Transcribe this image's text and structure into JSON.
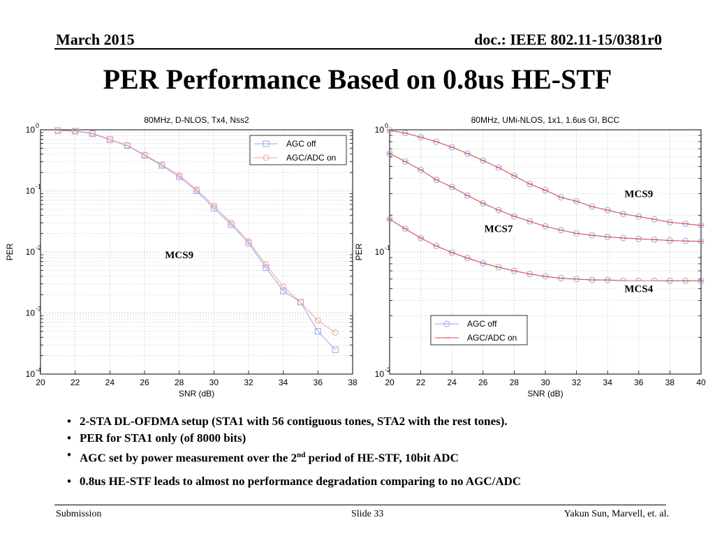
{
  "header": {
    "date": "March 2015",
    "doc": "doc.: IEEE 802.11-15/0381r0"
  },
  "title": "PER Performance Based on 0.8us HE-STF",
  "chart_data": [
    {
      "type": "line",
      "title": "80MHz, D-NLOS, Tx4, Nss2",
      "xlabel": "SNR (dB)",
      "ylabel": "PER",
      "xlim": [
        20,
        38
      ],
      "xticks": [
        20,
        22,
        24,
        26,
        28,
        30,
        32,
        34,
        36,
        38
      ],
      "yscale": "log",
      "ylim": [
        0.0001,
        1
      ],
      "yticks": [
        "10^0",
        "10^-1",
        "10^-2",
        "10^-3",
        "10^-4"
      ],
      "grid": true,
      "legend_position": "top-right",
      "annotations": [
        {
          "text": "MCS9",
          "x": 28,
          "y": 0.009
        }
      ],
      "series": [
        {
          "name": "AGC off",
          "marker": "square",
          "color": "#9aa0ee",
          "x": [
            21,
            22,
            23,
            24,
            25,
            26,
            27,
            28,
            29,
            30,
            31,
            32,
            33,
            34,
            35,
            36,
            37
          ],
          "y": [
            0.97,
            0.95,
            0.86,
            0.69,
            0.55,
            0.38,
            0.26,
            0.17,
            0.1,
            0.052,
            0.028,
            0.014,
            0.0055,
            0.0023,
            0.0015,
            0.0005,
            0.00025
          ]
        },
        {
          "name": "AGC/ADC on",
          "marker": "circle",
          "color": "#f0a0a6",
          "x": [
            21,
            22,
            23,
            24,
            25,
            26,
            27,
            28,
            29,
            30,
            31,
            32,
            33,
            34,
            35,
            36,
            37
          ],
          "y": [
            0.98,
            0.96,
            0.88,
            0.7,
            0.56,
            0.39,
            0.27,
            0.18,
            0.105,
            0.057,
            0.03,
            0.015,
            0.0062,
            0.0027,
            0.0015,
            0.00075,
            0.00048
          ]
        }
      ]
    },
    {
      "type": "line",
      "title": "80MHz, UMi-NLOS, 1x1, 1.6us GI, BCC",
      "xlabel": "SNR (dB)",
      "ylabel": "PER",
      "xlim": [
        20,
        40
      ],
      "xticks": [
        20,
        22,
        24,
        26,
        28,
        30,
        32,
        34,
        36,
        38,
        40
      ],
      "yscale": "log",
      "ylim": [
        0.01,
        1
      ],
      "yticks": [
        "10^0",
        "10^-1",
        "10^-2"
      ],
      "grid": true,
      "legend_position": "bottom-right",
      "annotations": [
        {
          "text": "MCS9",
          "x": 36,
          "y": 0.3
        },
        {
          "text": "MCS7",
          "x": 27,
          "y": 0.155
        },
        {
          "text": "MCS4",
          "x": 36,
          "y": 0.05
        }
      ],
      "series": [
        {
          "name": "AGC off",
          "marker": "circle",
          "color": "#9aa0ee",
          "x": [
            20,
            21,
            22,
            23,
            24,
            25,
            26,
            27,
            28,
            29,
            30,
            31,
            32,
            33,
            34,
            35,
            36,
            37,
            38,
            39,
            40
          ],
          "y": [
            0.99,
            0.94,
            0.87,
            0.8,
            0.72,
            0.64,
            0.56,
            0.49,
            0.42,
            0.36,
            0.32,
            0.28,
            0.26,
            0.235,
            0.22,
            0.205,
            0.195,
            0.185,
            0.175,
            0.17,
            0.165
          ]
        },
        {
          "name": "AGC off (MCS7)",
          "marker": "circle",
          "color": "#9aa0ee",
          "x": [
            20,
            21,
            22,
            23,
            24,
            25,
            26,
            27,
            28,
            29,
            30,
            31,
            32,
            33,
            34,
            35,
            36,
            37,
            38,
            39,
            40
          ],
          "y": [
            0.64,
            0.55,
            0.47,
            0.39,
            0.34,
            0.29,
            0.25,
            0.22,
            0.196,
            0.178,
            0.162,
            0.151,
            0.142,
            0.137,
            0.133,
            0.13,
            0.128,
            0.126,
            0.124,
            0.123,
            0.122
          ]
        },
        {
          "name": "AGC off (MCS4)",
          "marker": "circle",
          "color": "#9aa0ee",
          "x": [
            20,
            21,
            22,
            23,
            24,
            25,
            26,
            27,
            28,
            29,
            30,
            31,
            32,
            33,
            34,
            35,
            36,
            37,
            38,
            39,
            40
          ],
          "y": [
            0.185,
            0.155,
            0.13,
            0.112,
            0.099,
            0.089,
            0.081,
            0.075,
            0.07,
            0.066,
            0.063,
            0.061,
            0.06,
            0.059,
            0.059,
            0.058,
            0.058,
            0.058,
            0.058,
            0.058,
            0.058
          ]
        },
        {
          "name": "AGC/ADC on",
          "marker": "dots",
          "color": "#e04848",
          "x": [
            20,
            21,
            22,
            23,
            24,
            25,
            26,
            27,
            28,
            29,
            30,
            31,
            32,
            33,
            34,
            35,
            36,
            37,
            38,
            39,
            40
          ],
          "y": [
            0.99,
            0.94,
            0.87,
            0.8,
            0.72,
            0.64,
            0.56,
            0.49,
            0.42,
            0.36,
            0.32,
            0.28,
            0.26,
            0.235,
            0.22,
            0.205,
            0.195,
            0.185,
            0.175,
            0.17,
            0.165
          ]
        },
        {
          "name": "AGC/ADC on (MCS7)",
          "marker": "dots",
          "color": "#e04848",
          "x": [
            20,
            21,
            22,
            23,
            24,
            25,
            26,
            27,
            28,
            29,
            30,
            31,
            32,
            33,
            34,
            35,
            36,
            37,
            38,
            39,
            40
          ],
          "y": [
            0.64,
            0.55,
            0.47,
            0.39,
            0.34,
            0.29,
            0.25,
            0.22,
            0.196,
            0.178,
            0.162,
            0.151,
            0.142,
            0.137,
            0.133,
            0.13,
            0.128,
            0.126,
            0.124,
            0.123,
            0.122
          ]
        },
        {
          "name": "AGC/ADC on (MCS4)",
          "marker": "dots",
          "color": "#e04848",
          "x": [
            20,
            21,
            22,
            23,
            24,
            25,
            26,
            27,
            28,
            29,
            30,
            31,
            32,
            33,
            34,
            35,
            36,
            37,
            38,
            39,
            40
          ],
          "y": [
            0.185,
            0.155,
            0.13,
            0.112,
            0.099,
            0.089,
            0.081,
            0.075,
            0.07,
            0.066,
            0.063,
            0.061,
            0.06,
            0.059,
            0.059,
            0.058,
            0.058,
            0.058,
            0.058,
            0.058,
            0.058
          ]
        }
      ]
    }
  ],
  "bullets": [
    {
      "text": "2-STA DL-OFDMA setup (STA1 with 56 contiguous tones, STA2 with the rest tones)."
    },
    {
      "text": "PER for STA1 only (of 8000 bits)"
    },
    {
      "pre": "AGC set by power measurement over the 2",
      "sup": "nd",
      "post": " period of HE-STF, 10bit ADC"
    },
    {
      "text": "0.8us HE-STF leads to almost no performance degradation comparing to no AGC/ADC"
    }
  ],
  "footer": {
    "left": "Submission",
    "middle": "Slide 33",
    "right": "Yakun Sun,  Marvell, et. al."
  }
}
